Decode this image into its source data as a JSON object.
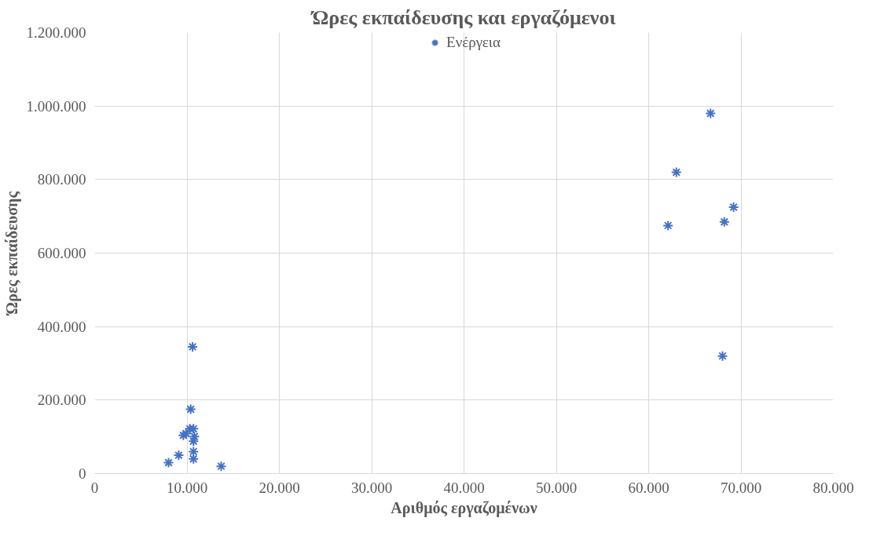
{
  "chart_data": {
    "type": "scatter",
    "title": "Ώρες εκπαίδευσης και εργαζόμενοι",
    "xlabel": "Αριθμός εργαζομένων",
    "ylabel": "Ώρες εκπαίδευσης",
    "series": [
      {
        "name": "Ενέργεια",
        "color": "#4472c4",
        "x": [
          66700,
          63000,
          62100,
          68200,
          69200,
          68000,
          10600,
          10400,
          8000,
          9100,
          13700,
          10700,
          10700,
          10700,
          9900,
          10300,
          9600,
          10800,
          10700
        ],
        "values": [
          980000,
          820000,
          675000,
          685000,
          725000,
          320000,
          345000,
          175000,
          30000,
          50000,
          20000,
          40000,
          60000,
          88000,
          109000,
          122000,
          104000,
          101000,
          122000
        ]
      }
    ],
    "marker": "cross",
    "legend": "top",
    "grid": true,
    "xlim": [
      0,
      80000
    ],
    "xticks": [
      {
        "value": 0,
        "label": "0"
      },
      {
        "value": 10000,
        "label": "10.000"
      },
      {
        "value": 20000,
        "label": "20.000"
      },
      {
        "value": 30000,
        "label": "30.000"
      },
      {
        "value": 40000,
        "label": "40.000"
      },
      {
        "value": 50000,
        "label": "50.000"
      },
      {
        "value": 60000,
        "label": "60.000"
      },
      {
        "value": 70000,
        "label": "70.000"
      },
      {
        "value": 80000,
        "label": "80.000"
      }
    ],
    "ylim": [
      0,
      1200000
    ],
    "yticks": [
      {
        "value": 0,
        "label": "0"
      },
      {
        "value": 200000,
        "label": "200.000"
      },
      {
        "value": 400000,
        "label": "400.000"
      },
      {
        "value": 600000,
        "label": "600.000"
      },
      {
        "value": 800000,
        "label": "800.000"
      },
      {
        "value": 1000000,
        "label": "1.000.000"
      },
      {
        "value": 1200000,
        "label": "1.200.000"
      }
    ]
  }
}
